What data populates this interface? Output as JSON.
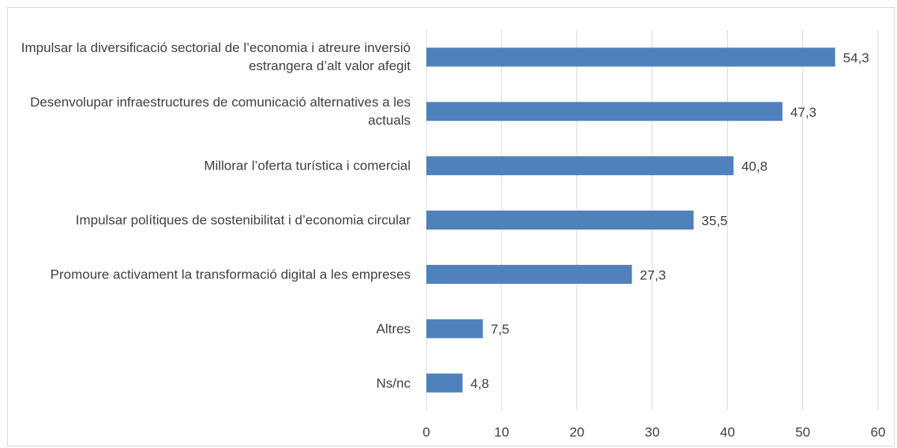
{
  "chart_data": {
    "type": "bar",
    "orientation": "horizontal",
    "categories": [
      "Impulsar la diversificació sectorial de l’economia i atreure inversió estrangera d’alt valor afegit",
      "Desenvolupar infraestructures de comunicació alternatives a les actuals",
      "Millorar l’oferta turística i comercial",
      "Impulsar polítiques de sostenibilitat i d’economia circular",
      "Promoure activament la transformació digital a les empreses",
      "Altres",
      "Ns/nc"
    ],
    "values": [
      54.3,
      47.3,
      40.8,
      35.5,
      27.3,
      7.5,
      4.8
    ],
    "value_labels": [
      "54,3",
      "47,3",
      "40,8",
      "35,5",
      "27,3",
      "7,5",
      "4,8"
    ],
    "color": "#4f81bd",
    "xlim": [
      0,
      60
    ],
    "xticks": [
      0,
      10,
      20,
      30,
      40,
      50,
      60
    ],
    "grid": true
  }
}
